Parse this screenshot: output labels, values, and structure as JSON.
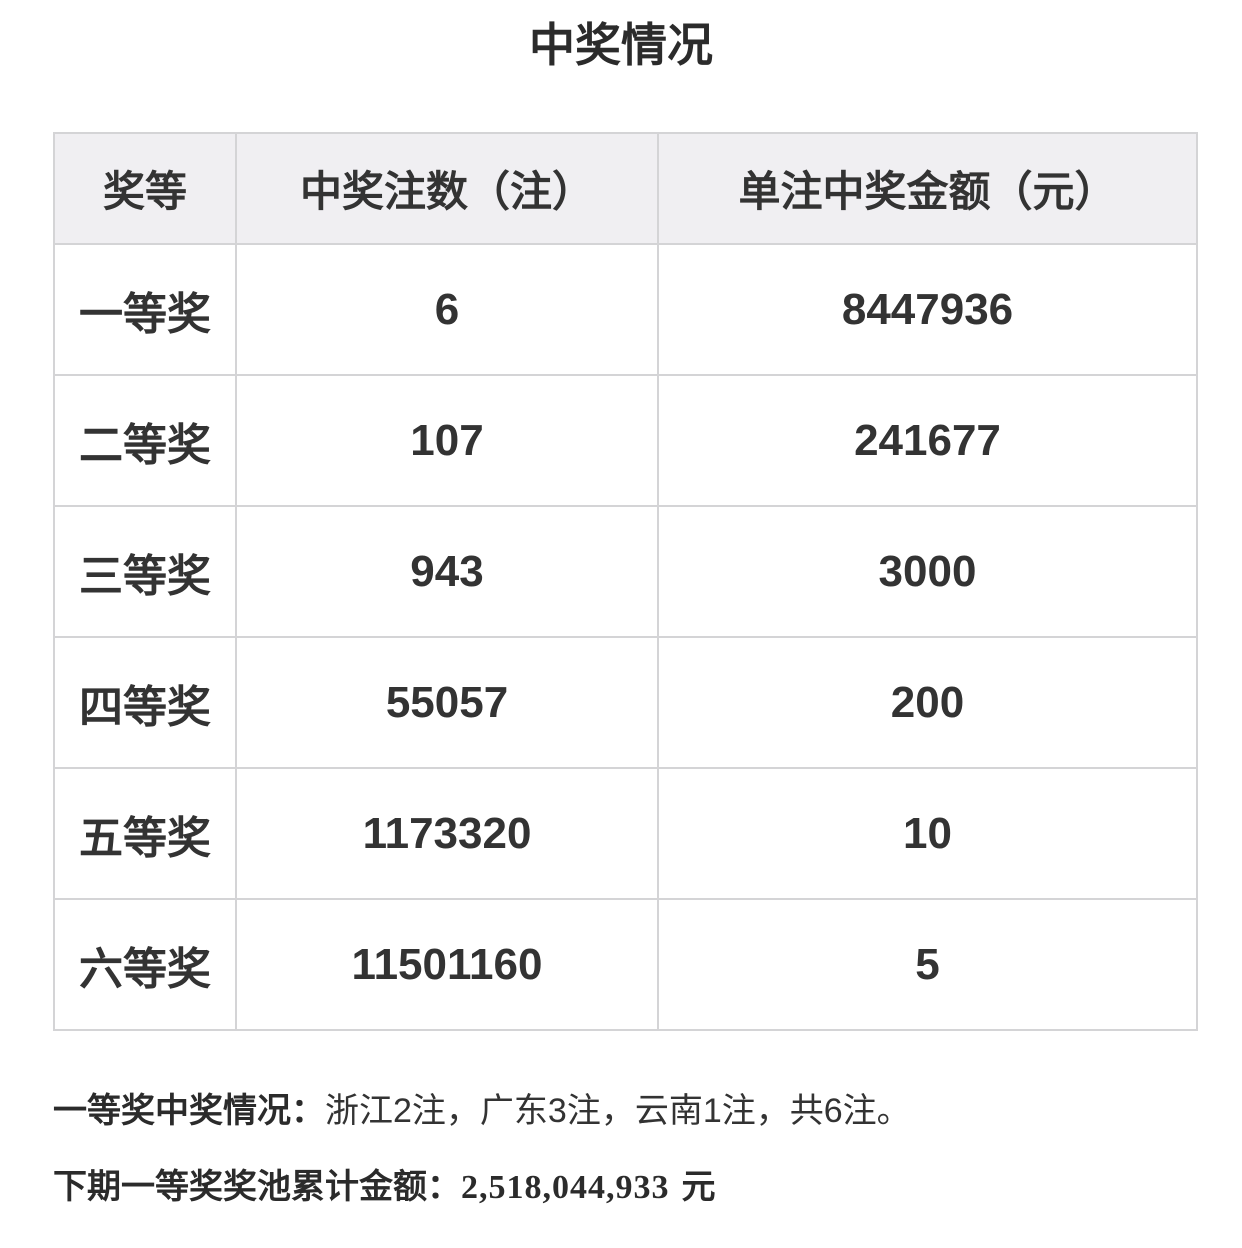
{
  "title": "中奖情况",
  "table": {
    "headers": [
      "奖等",
      "中奖注数（注）",
      "单注中奖金额（元）"
    ],
    "rows": [
      {
        "level": "一等奖",
        "count": "6",
        "amount": "8447936"
      },
      {
        "level": "二等奖",
        "count": "107",
        "amount": "241677"
      },
      {
        "level": "三等奖",
        "count": "943",
        "amount": "3000"
      },
      {
        "level": "四等奖",
        "count": "55057",
        "amount": "200"
      },
      {
        "level": "五等奖",
        "count": "1173320",
        "amount": "10"
      },
      {
        "level": "六等奖",
        "count": "11501160",
        "amount": "5"
      }
    ]
  },
  "notes": {
    "first_prize_label": "一等奖中奖情况：",
    "first_prize_detail": "浙江2注，广东3注，云南1注，共6注。",
    "jackpot_label": "下期一等奖奖池累计金额：",
    "jackpot_amount": "2,518,044,933",
    "jackpot_unit": "元"
  },
  "colors": {
    "header_bg": "#f0eff2",
    "border": "#d4d4d6",
    "text": "#333333"
  }
}
